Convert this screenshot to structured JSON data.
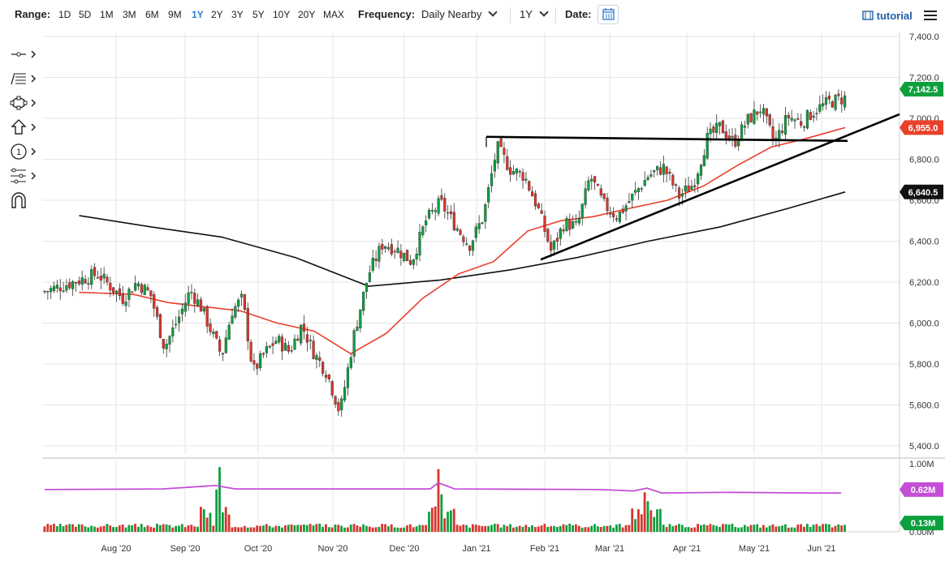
{
  "toolbar": {
    "range_label": "Range:",
    "ranges": [
      "1D",
      "5D",
      "1M",
      "3M",
      "6M",
      "9M",
      "1Y",
      "2Y",
      "3Y",
      "5Y",
      "10Y",
      "20Y",
      "MAX"
    ],
    "active_range": "1Y",
    "frequency_label": "Frequency:",
    "frequency_value": "Daily Nearby",
    "period_value": "1Y",
    "date_label": "Date:",
    "tutorial_label": "tutorial"
  },
  "sidebar": {
    "tools": [
      "crosshair-tool-icon",
      "fibonacci-tool-icon",
      "shapes-tool-icon",
      "arrow-tool-icon",
      "annotation-number-icon",
      "pattern-tool-icon",
      "magnet-icon"
    ],
    "annotation_number": "1"
  },
  "colors": {
    "up": "#0e9f3e",
    "down": "#d9342b",
    "ma50": "#e8402a",
    "ma200": "#111111",
    "volume_ma": "#c44fd6",
    "grid": "#e6e6e6",
    "accent": "#2f7cd6"
  },
  "chart_data": [
    {
      "type": "candlestick",
      "title": "",
      "y_axis_ticks": [
        "7,400.0",
        "7,200.0",
        "7,000.0",
        "6,800.0",
        "6,600.0",
        "6,400.0",
        "6,200.0",
        "6,000.0",
        "5,800.0",
        "5,600.0",
        "5,400.0"
      ],
      "ylim": [
        5360,
        7420
      ],
      "x_axis_ticks": [
        "Aug '20",
        "Sep '20",
        "Oct '20",
        "Nov '20",
        "Dec '20",
        "Jan '21",
        "Feb '21",
        "Mar '21",
        "Apr '21",
        "May '21",
        "Jun '21"
      ],
      "last_price_label": "7,142.5",
      "ma50_label": "6,955.0",
      "ma200_label": "6,640.5",
      "close_path": [
        [
          "Jul '20",
          6180
        ],
        [
          "Jul '20",
          6240
        ],
        [
          "Aug '20",
          6120
        ],
        [
          "Aug '20",
          6200
        ],
        [
          "Aug '20",
          6140
        ],
        [
          "Aug '20",
          5880
        ],
        [
          "Aug '20",
          6020
        ],
        [
          "Sep '20",
          6160
        ],
        [
          "Sep '20",
          6080
        ],
        [
          "Sep '20",
          5960
        ],
        [
          "Sep '20",
          5840
        ],
        [
          "Sep '20",
          6060
        ],
        [
          "Sep '20",
          6120
        ],
        [
          "Sep '20",
          5760
        ],
        [
          "Oct '20",
          5850
        ],
        [
          "Oct '20",
          5920
        ],
        [
          "Oct '20",
          5860
        ],
        [
          "Oct '20",
          5990
        ],
        [
          "Oct '20",
          5850
        ],
        [
          "Oct '20",
          5760
        ],
        [
          "Nov '20",
          5560
        ],
        [
          "Nov '20",
          5950
        ],
        [
          "Nov '20",
          6240
        ],
        [
          "Nov '20",
          6390
        ],
        [
          "Nov '20",
          6360
        ],
        [
          "Dec '20",
          6300
        ],
        [
          "Dec '20",
          6500
        ],
        [
          "Dec '20",
          6590
        ],
        [
          "Dec '20",
          6480
        ],
        [
          "Dec '20",
          6380
        ],
        [
          "Jan '21",
          6520
        ],
        [
          "Jan '21",
          6860
        ],
        [
          "Jan '21",
          6750
        ],
        [
          "Jan '21",
          6720
        ],
        [
          "Jan '21",
          6560
        ],
        [
          "Feb '21",
          6350
        ],
        [
          "Feb '21",
          6490
        ],
        [
          "Feb '21",
          6470
        ],
        [
          "Feb '21",
          6720
        ],
        [
          "Feb '21",
          6580
        ],
        [
          "Mar '21",
          6520
        ],
        [
          "Mar '21",
          6620
        ],
        [
          "Mar '21",
          6720
        ],
        [
          "Mar '21",
          6760
        ],
        [
          "Mar '21",
          6620
        ],
        [
          "Apr '21",
          6680
        ],
        [
          "Apr '21",
          6900
        ],
        [
          "Apr '21",
          6960
        ],
        [
          "Apr '21",
          6880
        ],
        [
          "Apr '21",
          6990
        ],
        [
          "May '21",
          7050
        ],
        [
          "May '21",
          6880
        ],
        [
          "May '21",
          7010
        ],
        [
          "May '21",
          6980
        ],
        [
          "May '21",
          7040
        ],
        [
          "Jun '21",
          7080
        ],
        [
          "Jun '21",
          7100
        ],
        [
          "Jun '21",
          7142.5
        ]
      ],
      "ma50_path": [
        [
          "Jul '20",
          6150
        ],
        [
          "Aug '20",
          6140
        ],
        [
          "Aug '20",
          6100
        ],
        [
          "Sep '20",
          6080
        ],
        [
          "Sep '20",
          6060
        ],
        [
          "Oct '20",
          6000
        ],
        [
          "Oct '20",
          5960
        ],
        [
          "Nov '20",
          5850
        ],
        [
          "Nov '20",
          5950
        ],
        [
          "Dec '20",
          6120
        ],
        [
          "Dec '20",
          6240
        ],
        [
          "Jan '21",
          6300
        ],
        [
          "Jan '21",
          6450
        ],
        [
          "Feb '21",
          6500
        ],
        [
          "Feb '21",
          6520
        ],
        [
          "Mar '21",
          6560
        ],
        [
          "Mar '21",
          6600
        ],
        [
          "Apr '21",
          6670
        ],
        [
          "Apr '21",
          6770
        ],
        [
          "May '21",
          6860
        ],
        [
          "May '21",
          6900
        ],
        [
          "Jun '21",
          6955
        ]
      ],
      "ma200_path": [
        [
          "Jul '20",
          6525
        ],
        [
          "Aug '20",
          6470
        ],
        [
          "Sep '20",
          6420
        ],
        [
          "Oct '20",
          6320
        ],
        [
          "Nov '20",
          6180
        ],
        [
          "Dec '20",
          6210
        ],
        [
          "Jan '21",
          6260
        ],
        [
          "Feb '21",
          6320
        ],
        [
          "Mar '21",
          6400
        ],
        [
          "Apr '21",
          6470
        ],
        [
          "May '21",
          6560
        ],
        [
          "Jun '21",
          6640.5
        ]
      ],
      "drawn_lines": [
        {
          "name": "horizontal-resistance",
          "points": [
            [
              "Jan '21",
              6910
            ],
            [
              "Jun '21",
              6890
            ]
          ]
        },
        {
          "name": "uptrend-line",
          "points": [
            [
              "Feb '21",
              6310
            ],
            [
              "Jun '21",
              7020
            ]
          ]
        }
      ]
    },
    {
      "type": "bar",
      "title": "",
      "y_axis_ticks": [
        "1.00M",
        "0.62M",
        "0.13M",
        "0.00M"
      ],
      "ylim": [
        0,
        1.0
      ],
      "volume_ma_label": "0.62M",
      "last_volume_label": "0.13M",
      "volume_ma_level": 0.62,
      "spikes": [
        {
          "x": "Sep '20",
          "value": 0.62
        },
        {
          "x": "Sep '20",
          "value": 0.95
        },
        {
          "x": "Dec '20",
          "value": 0.92
        },
        {
          "x": "Dec '20",
          "value": 0.55
        },
        {
          "x": "Mar '21",
          "value": 0.58
        },
        {
          "x": "Mar '21",
          "value": 0.45
        }
      ]
    }
  ]
}
